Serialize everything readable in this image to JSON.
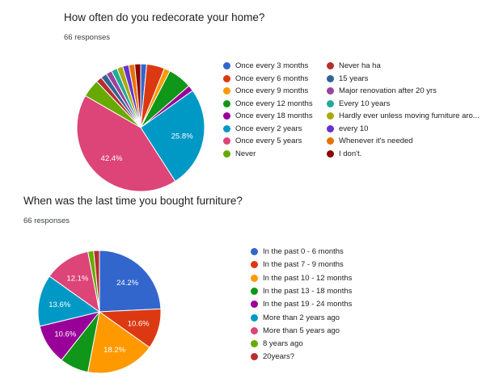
{
  "q1": {
    "title": "How often do you redecorate your home?",
    "responses": "66 responses"
  },
  "q2": {
    "title": "When was the last time you bought furniture?",
    "responses": "66 responses"
  },
  "chart_data": [
    {
      "type": "pie",
      "title": "How often do you redecorate your home?",
      "total_responses": 66,
      "categories": [
        "Once every 3 months",
        "Once every 6 months",
        "Once every 9 months",
        "Once every 12 months",
        "Once every 18 months",
        "Once every 2 years",
        "Once every 5 years",
        "Never",
        "Never ha ha",
        "15 years",
        "Major renovation after 20 yrs",
        "Every 10 years",
        "Hardly ever unless moving furniture aro...",
        "every 10",
        "Whenever it's needed",
        "I don't."
      ],
      "values": [
        1,
        3,
        1,
        4,
        1,
        17,
        28,
        3,
        1,
        1,
        1,
        1,
        1,
        1,
        1,
        1
      ],
      "data_labels": [
        "",
        "",
        "",
        "",
        "",
        "25.8%",
        "42.4%",
        "",
        "",
        "",
        "",
        "",
        "",
        "",
        "",
        ""
      ],
      "colors": [
        "#3366cc",
        "#dc3912",
        "#ff9900",
        "#109618",
        "#990099",
        "#0099c6",
        "#dd4477",
        "#66aa00",
        "#b82e2e",
        "#316395",
        "#994499",
        "#22aa99",
        "#aaaa11",
        "#6633cc",
        "#e67300",
        "#8b0707"
      ],
      "legend_position": "right"
    },
    {
      "type": "pie",
      "title": "When was the last time you bought furniture?",
      "total_responses": 66,
      "categories": [
        "In the past 0 - 6 months",
        "In the past 7 - 9 months",
        "In the past 10 - 12 months",
        "In the past 13 - 18 months",
        "In the past 19 - 24 months",
        "More than 2 years ago",
        "More than 5 years ago",
        "8 years ago",
        "20years?"
      ],
      "values": [
        16,
        7,
        12,
        5,
        7,
        9,
        8,
        1,
        1
      ],
      "data_labels": [
        "24.2%",
        "10.6%",
        "18.2%",
        "",
        "10.6%",
        "13.6%",
        "12.1%",
        "",
        ""
      ],
      "colors": [
        "#3366cc",
        "#dc3912",
        "#ff9900",
        "#109618",
        "#990099",
        "#0099c6",
        "#dd4477",
        "#66aa00",
        "#b82e2e"
      ],
      "legend_position": "right"
    }
  ]
}
